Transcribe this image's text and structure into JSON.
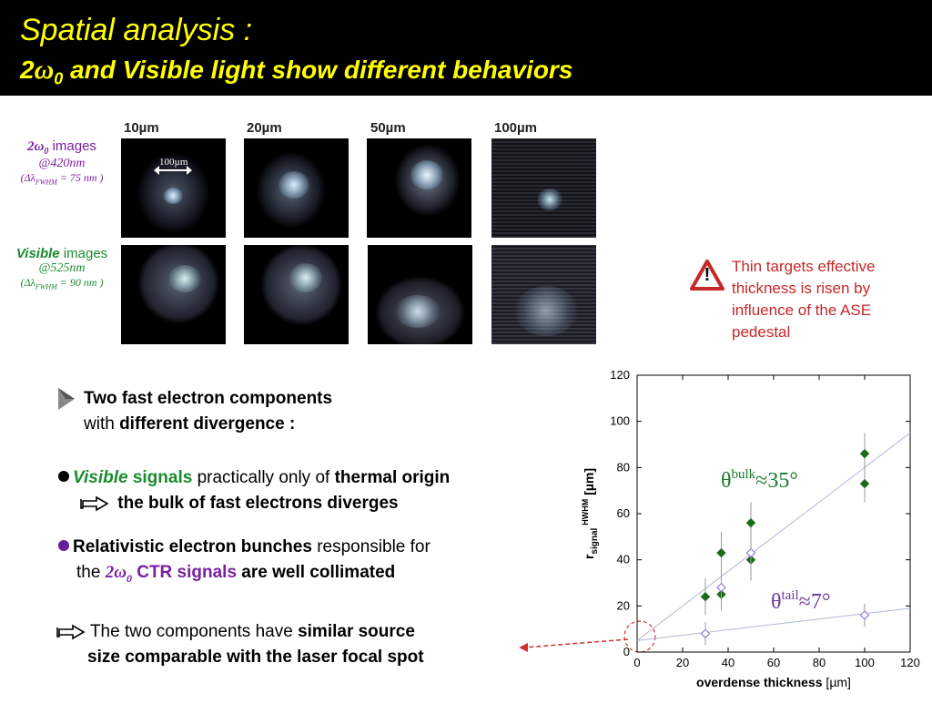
{
  "title": {
    "line1": "Spatial analysis :",
    "line2_prefix": "2",
    "line2_omega": "ω",
    "line2_sub": "0",
    "line2_rest": " and Visible light show different behaviors"
  },
  "images": {
    "columns": [
      "10µm",
      "20µm",
      "50µm",
      "100µm"
    ],
    "scale_label": "100µm",
    "row1": {
      "name_prefix": "2",
      "name_omega": "ω",
      "name_sub": "0",
      "name_rest": " images",
      "wavelength": "@420nm",
      "bandwidth_open": "(Δλ",
      "bandwidth_sub": "FWHM",
      "bandwidth_close": " = 75 nm )"
    },
    "row2": {
      "name_em": "Visible",
      "name_rest": " images",
      "wavelength": "@525nm",
      "bandwidth_open": "(Δλ",
      "bandwidth_sub": "FWHM",
      "bandwidth_close": " = 90 nm )"
    }
  },
  "warning": {
    "icon": "!",
    "text": "Thin targets effective thickness is risen by influence of the ASE pedestal"
  },
  "bullets": {
    "b1_line1": "Two fast electron components",
    "b1_with": "with ",
    "b1_bold": "different divergence :",
    "b2_em": "Visible",
    "b2_green": " signals",
    "b2_mid": " practically only of ",
    "b2_bold": "thermal origin",
    "b2_line2": "the bulk of fast electrons diverges",
    "b3_bold": "Relativistic electron bunches",
    "b3_rest": " responsible for",
    "b3_the": "the ",
    "b3_two": "2",
    "b3_omega": "ω",
    "b3_sub": "0",
    "b3_ctr": " CTR signals",
    "b3_end": " are well collimated",
    "b4_start": "The two components have ",
    "b4_bold": "similar source",
    "b4_line2": "size comparable with the laser focal spot"
  },
  "chart_data": {
    "type": "scatter",
    "xlabel_bold": "overdense thickness",
    "xlabel_unit": " [µm]",
    "ylabel_r": "r",
    "ylabel_sub1": "signal",
    "ylabel_sup": "HWHM",
    "ylabel_unit": " [µm]",
    "xlim": [
      0,
      120
    ],
    "ylim": [
      0,
      120
    ],
    "xticks": [
      "0",
      "20",
      "40",
      "60",
      "80",
      "100",
      "120"
    ],
    "yticks": [
      "0",
      "20",
      "40",
      "60",
      "80",
      "100",
      "120"
    ],
    "annotations": {
      "bulk": {
        "theta": "θ",
        "sup": "bulk",
        "rest": "≈35°"
      },
      "tail": {
        "theta": "θ",
        "sup": "tail",
        "rest": "≈7°"
      }
    },
    "series": [
      {
        "marker": "filled-diamond",
        "color": "#1a6b1a",
        "x": [
          30,
          37,
          37,
          50,
          50,
          100,
          100
        ],
        "y": [
          24,
          25,
          43,
          56,
          40,
          86,
          73
        ],
        "err": [
          8,
          7,
          9,
          9,
          9,
          9,
          8
        ]
      },
      {
        "marker": "open-diamond",
        "color": "#9b7fd4",
        "x": [
          30,
          37,
          50,
          100
        ],
        "y": [
          8,
          28,
          43,
          16
        ],
        "err": [
          5,
          6,
          6,
          5
        ]
      }
    ],
    "fit_lines": [
      {
        "color": "#b0b8d8",
        "x": [
          0,
          120
        ],
        "y": [
          5,
          95
        ]
      },
      {
        "color": "#b0b8d8",
        "x": [
          0,
          120
        ],
        "y": [
          5,
          19
        ]
      }
    ]
  },
  "colors": {
    "title": "#ffff00",
    "purple": "#7b1fa2",
    "green": "#1b8a2e",
    "warning": "#c62828"
  }
}
